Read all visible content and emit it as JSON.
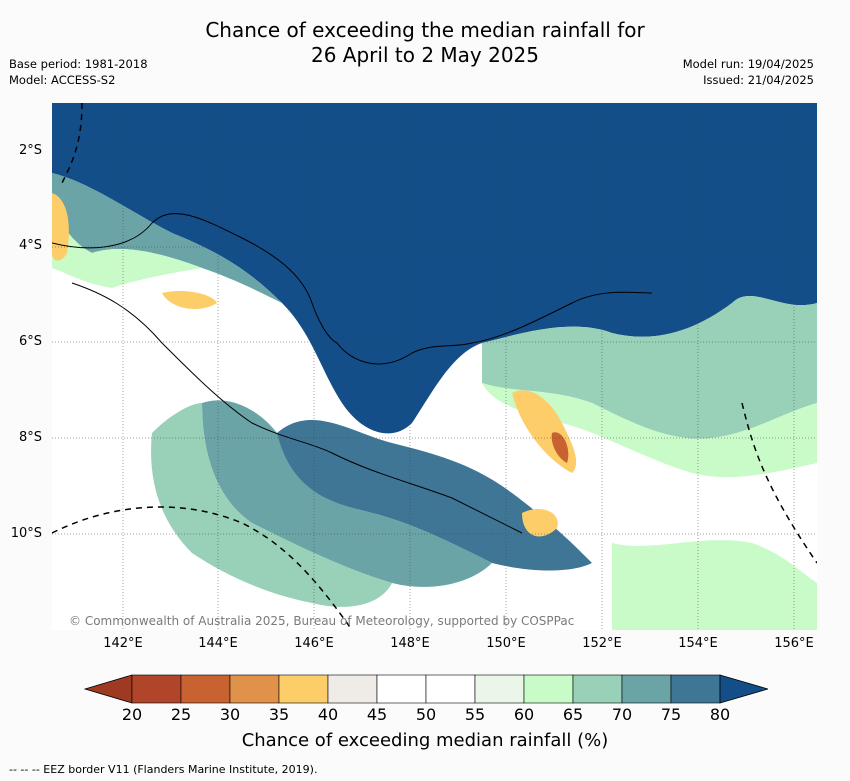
{
  "title": "Chance of exceeding the median rainfall for\n26 April to 2 May 2025",
  "meta_left": {
    "base_period": "Base period: 1981-2018",
    "model": "Model: ACCESS-S2"
  },
  "meta_right": {
    "model_run": "Model run: 19/04/2025",
    "issued": "Issued: 21/04/2025"
  },
  "map": {
    "lat_labels": [
      "2°S",
      "4°S",
      "6°S",
      "8°S",
      "10°S"
    ],
    "lon_labels": [
      "142°E",
      "144°E",
      "146°E",
      "148°E",
      "150°E",
      "152°E",
      "154°E",
      "156°E"
    ],
    "copyright": "© Commonwealth of Australia 2025, Bureau of Meteorology, supported by COSPPac"
  },
  "colorbar": {
    "ticks": [
      "20",
      "25",
      "30",
      "35",
      "40",
      "45",
      "50",
      "55",
      "60",
      "65",
      "70",
      "75",
      "80"
    ],
    "label": "Chance of exceeding median rainfall (%)",
    "colors": [
      "#b0452a",
      "#c86231",
      "#e0924a",
      "#fdcd6a",
      "#efebe6",
      "#ffffff",
      "#ffffff",
      "#eaf7e8",
      "#c9fbc9",
      "#98d0b8",
      "#6aa4a6",
      "#3f7695",
      "#134e89"
    ]
  },
  "legend_note": "-- -- -- EEZ border V11 (Flanders Marine Institute, 2019)."
}
